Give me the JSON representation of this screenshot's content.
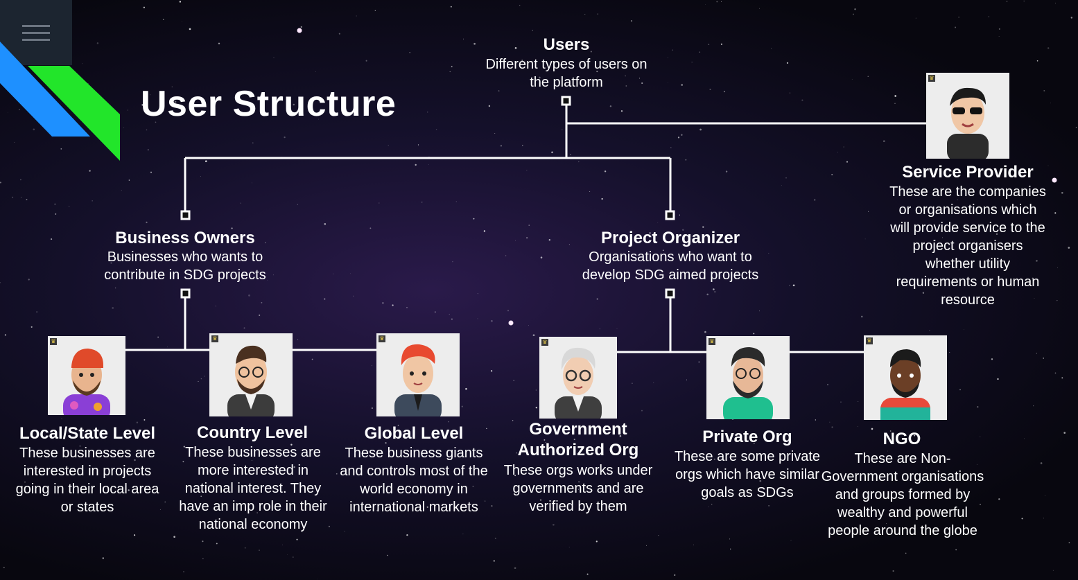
{
  "title": "User Structure",
  "nodes": {
    "users": {
      "title": "Users",
      "desc": "Different types of users on the platform"
    },
    "business_owners": {
      "title": "Business Owners",
      "desc": "Businesses who wants to contribute in SDG projects"
    },
    "project_organizer": {
      "title": "Project Organizer",
      "desc": "Organisations who want to develop SDG aimed projects"
    },
    "service_provider": {
      "title": "Service Provider",
      "desc": "These are the companies or organisations which will provide service to the project organisers whether utility requirements or human resource"
    },
    "local_state": {
      "title": "Local/State Level",
      "desc": "These businesses are interested in projects going in their local area or states"
    },
    "country": {
      "title": "Country Level",
      "desc": "These businesses are more interested in national interest. They have an imp role in their national economy"
    },
    "global": {
      "title": "Global Level",
      "desc": "These business giants and controls most of the world economy in international markets"
    },
    "government": {
      "title": "Government Authorized Org",
      "desc": "These orgs works under governments and are verified by them"
    },
    "private": {
      "title": "Private Org",
      "desc": "These are some private orgs which have similar goals as SDGs"
    },
    "ngo": {
      "title": "NGO",
      "desc": "These are Non-Government organisations and groups formed by wealthy and powerful people around the globe"
    }
  },
  "colors": {
    "accent_blue": "#1e90ff",
    "accent_green": "#22e52a",
    "line": "#ffffff"
  },
  "icons": {
    "menu": "hamburger-menu-icon",
    "badge": "crown-badge-icon"
  }
}
